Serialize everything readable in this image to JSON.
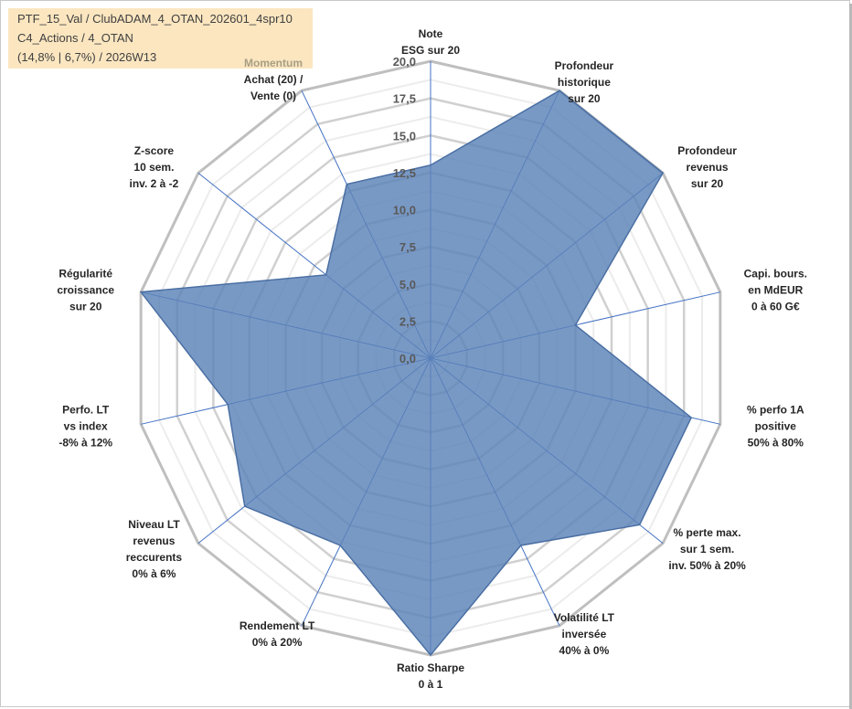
{
  "info": {
    "line1": "PTF_15_Val / ClubADAM_4_OTAN_202601_4spr10",
    "line2": "C4_Actions / 4_OTAN",
    "line3": "(14,8% | 6,7%) / 2026W13"
  },
  "chart_data": {
    "type": "radar",
    "title": "",
    "rmin": 0,
    "rmax": 20,
    "ticks": [
      "0,0",
      "2,5",
      "5,0",
      "7,5",
      "10,0",
      "12,5",
      "15,0",
      "17,5",
      "20,0"
    ],
    "axes": [
      {
        "label": [
          "Note",
          "ESG sur 20"
        ],
        "value": 13.0
      },
      {
        "label": [
          "Profondeur",
          "historique",
          "sur 20"
        ],
        "value": 20.0
      },
      {
        "label": [
          "Profondeur",
          "revenus",
          "sur 20"
        ],
        "value": 20.0
      },
      {
        "label": [
          "Capi. bours.",
          "en MdEUR",
          "0 à 60 G€"
        ],
        "value": 10.0
      },
      {
        "label": [
          "% perfo 1A",
          "positive",
          "50% à 80%"
        ],
        "value": 18.0
      },
      {
        "label": [
          "% perte max.",
          "sur 1 sem.",
          "inv. 50% à 20%"
        ],
        "value": 18.0
      },
      {
        "label": [
          "Volatilité LT",
          "inversée",
          "40% à 0%"
        ],
        "value": 14.0
      },
      {
        "label": [
          "Ratio Sharpe",
          "0 à 1"
        ],
        "value": 20.0
      },
      {
        "label": [
          "Rendement LT",
          "0% à 20%"
        ],
        "value": 14.0
      },
      {
        "label": [
          "Niveau LT",
          "revenus",
          "reccurents",
          "0% à 6%"
        ],
        "value": 16.0
      },
      {
        "label": [
          "Perfo. LT",
          "vs index",
          "-8% à 12%"
        ],
        "value": 14.0
      },
      {
        "label": [
          "Régularité",
          "croissance",
          "sur 20"
        ],
        "value": 20.0
      },
      {
        "label": [
          "Z-score",
          "10 sem.",
          "inv. 2 à -2"
        ],
        "value": 9.0
      },
      {
        "label": [
          "Momentum",
          "Achat (20) /",
          "Vente (0)"
        ],
        "value": 13.0
      }
    ],
    "series": [
      {
        "name": "PTF_15_Val",
        "color": "#5b82b8"
      }
    ],
    "highlight_label_color": "#a89f84"
  }
}
